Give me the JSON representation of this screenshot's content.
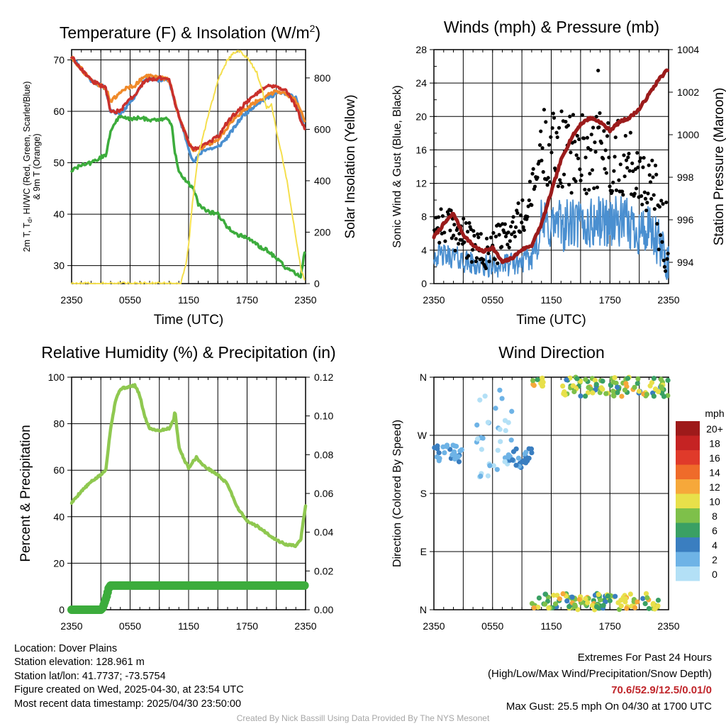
{
  "colors": {
    "red": "#c9302c",
    "green": "#3cac3c",
    "blue": "#4a8fd0",
    "orange": "#f08a2a",
    "yellow": "#f5df4d",
    "maroon": "#9b1b1b",
    "black": "#000000",
    "rh": "#8fc850",
    "precip": "#3cac3c"
  },
  "time_ticks": [
    "2350",
    "0550",
    "1150",
    "1750",
    "2350"
  ],
  "chart_data": [
    {
      "id": "temp",
      "type": "line",
      "title": "Temperature (F) & Insolation (W/m",
      "title_sup": "2",
      "title_close": ")",
      "xlabel": "Time (UTC)",
      "ylabel_lines": [
        "2m T, T",
        "d",
        ", HI/WC (Red, Green, Scarlet/Blue)",
        "& 9m T (Orange)"
      ],
      "y2label": "Solar Insolation (Yellow)",
      "ylim": [
        26.5,
        72
      ],
      "yticks": [
        30,
        40,
        50,
        60,
        70
      ],
      "y2lim": [
        0,
        910
      ],
      "y2ticks": [
        0,
        200,
        400,
        600,
        800
      ],
      "x_hours": [
        0,
        24
      ],
      "series": [
        {
          "color": "blue",
          "width": 3.5,
          "points": [
            [
              0,
              70.6
            ],
            [
              2,
              66
            ],
            [
              3.5,
              64.5
            ],
            [
              4,
              60
            ],
            [
              5,
              59.5
            ],
            [
              6.5,
              63
            ],
            [
              7.5,
              66.3
            ],
            [
              10,
              66
            ],
            [
              11,
              59
            ],
            [
              12,
              53
            ],
            [
              12.5,
              50
            ],
            [
              13.5,
              52.5
            ],
            [
              15,
              53
            ],
            [
              16,
              55
            ],
            [
              17.5,
              59
            ],
            [
              19,
              61.5
            ],
            [
              20,
              62.5
            ],
            [
              21,
              63.5
            ],
            [
              22,
              63.5
            ],
            [
              23,
              62.5
            ],
            [
              24,
              56
            ]
          ]
        },
        {
          "color": "orange",
          "width": 3.5,
          "points": [
            [
              0,
              70.5
            ],
            [
              2,
              66
            ],
            [
              3.5,
              64.5
            ],
            [
              4,
              62
            ],
            [
              5,
              63.5
            ],
            [
              5.5,
              64.5
            ],
            [
              6.5,
              65
            ],
            [
              7.5,
              67
            ],
            [
              10,
              66.2
            ],
            [
              11,
              59
            ],
            [
              12,
              54
            ],
            [
              12.5,
              52.5
            ],
            [
              13.5,
              53
            ],
            [
              15,
              54.5
            ],
            [
              16,
              57
            ],
            [
              17.5,
              60
            ],
            [
              19,
              62
            ],
            [
              20,
              63
            ],
            [
              21,
              64
            ],
            [
              22,
              63.5
            ],
            [
              23,
              62
            ],
            [
              24,
              58
            ]
          ]
        },
        {
          "color": "red",
          "width": 3.5,
          "points": [
            [
              0,
              70.6
            ],
            [
              2,
              66
            ],
            [
              3.5,
              64.5
            ],
            [
              4,
              60
            ],
            [
              5,
              60
            ],
            [
              6,
              62.5
            ],
            [
              6.5,
              63
            ],
            [
              7.5,
              66
            ],
            [
              9,
              66.5
            ],
            [
              10,
              66
            ],
            [
              11,
              59
            ],
            [
              12,
              54
            ],
            [
              12.5,
              52.5
            ],
            [
              13.5,
              53.5
            ],
            [
              15,
              55
            ],
            [
              16,
              58
            ],
            [
              17.5,
              61
            ],
            [
              19,
              63.5
            ],
            [
              20,
              65
            ],
            [
              21,
              65
            ],
            [
              22,
              64
            ],
            [
              23,
              61
            ],
            [
              24,
              56
            ]
          ]
        },
        {
          "color": "green",
          "width": 3.5,
          "points": [
            [
              0,
              48.5
            ],
            [
              1,
              49.5
            ],
            [
              2,
              50
            ],
            [
              3,
              51
            ],
            [
              3.5,
              51.5
            ],
            [
              4,
              56
            ],
            [
              4.5,
              58
            ],
            [
              5,
              59
            ],
            [
              6,
              58.5
            ],
            [
              7,
              58.7
            ],
            [
              8,
              58.4
            ],
            [
              9,
              58.4
            ],
            [
              9.5,
              58.6
            ],
            [
              10,
              58.2
            ],
            [
              10.3,
              57
            ],
            [
              10.6,
              52
            ],
            [
              11,
              48.5
            ],
            [
              11.5,
              47
            ],
            [
              12,
              46
            ],
            [
              12.5,
              45
            ],
            [
              13,
              42
            ],
            [
              14,
              40.5
            ],
            [
              15,
              40
            ],
            [
              16,
              37.5
            ],
            [
              17,
              36
            ],
            [
              18,
              35.5
            ],
            [
              19,
              34
            ],
            [
              20,
              33
            ],
            [
              21,
              31.5
            ],
            [
              22,
              29.5
            ],
            [
              23,
              28.5
            ],
            [
              23.5,
              27.8
            ],
            [
              24,
              34
            ]
          ]
        },
        {
          "color": "yellow",
          "width": 2,
          "axis": "y2",
          "points": [
            [
              0,
              0
            ],
            [
              11.2,
              0
            ],
            [
              11.7,
              70
            ],
            [
              12,
              150
            ],
            [
              12.5,
              350
            ],
            [
              13,
              500
            ],
            [
              14,
              650
            ],
            [
              15,
              790
            ],
            [
              16,
              870
            ],
            [
              17,
              910
            ],
            [
              18,
              880
            ],
            [
              19,
              820
            ],
            [
              19.5,
              760
            ],
            [
              20,
              680
            ],
            [
              20.5,
              700
            ],
            [
              21,
              600
            ],
            [
              22,
              420
            ],
            [
              23,
              180
            ],
            [
              23.5,
              60
            ],
            [
              24,
              0
            ]
          ]
        }
      ]
    },
    {
      "id": "wind",
      "type": "scatter",
      "title": "Winds (mph) & Pressure (mb)",
      "xlabel": "Time (UTC)",
      "ylabel": "Sonic Wind & Gust (Blue, Black)",
      "y2label": "Station Pressure (Maroon)",
      "ylim": [
        0,
        28
      ],
      "yticks": [
        0,
        4,
        8,
        12,
        16,
        20,
        24,
        28
      ],
      "y2lim": [
        993.0,
        1004.0
      ],
      "y2ticks": [
        994,
        996,
        998,
        1000,
        1002,
        1004
      ],
      "x_hours": [
        0,
        24
      ],
      "wind_color": "blue",
      "gust_color": "black",
      "pressure_color": "maroon",
      "wind_mean": [
        [
          0,
          3.5
        ],
        [
          2,
          3.2
        ],
        [
          4,
          2.3
        ],
        [
          5,
          2.0
        ],
        [
          6,
          2.1
        ],
        [
          8,
          2.3
        ],
        [
          10,
          3.0
        ],
        [
          10.5,
          5.5
        ],
        [
          11,
          7.0
        ],
        [
          12,
          7.0
        ],
        [
          14,
          7.0
        ],
        [
          16,
          7.0
        ],
        [
          17,
          7.5
        ],
        [
          19,
          7.3
        ],
        [
          21,
          6.5
        ],
        [
          22,
          6.0
        ],
        [
          23,
          4.5
        ],
        [
          24,
          2.5
        ]
      ],
      "gust_mean": [
        [
          0,
          7.5
        ],
        [
          2,
          6.5
        ],
        [
          4,
          4.5
        ],
        [
          5,
          3.5
        ],
        [
          6,
          4.2
        ],
        [
          8,
          6.5
        ],
        [
          9.5,
          8.5
        ],
        [
          10.5,
          13
        ],
        [
          11,
          16.5
        ],
        [
          12,
          16.5
        ],
        [
          14,
          15.5
        ],
        [
          16,
          15.5
        ],
        [
          17,
          16
        ],
        [
          19,
          15
        ],
        [
          21,
          13.5
        ],
        [
          22,
          12
        ],
        [
          23,
          8
        ],
        [
          24,
          4.5
        ]
      ],
      "pressure": [
        [
          0,
          995.2
        ],
        [
          1,
          995.8
        ],
        [
          2,
          996.3
        ],
        [
          3,
          995.3
        ],
        [
          4,
          994.8
        ],
        [
          5,
          994.5
        ],
        [
          6,
          994.7
        ],
        [
          7,
          994.0
        ],
        [
          8,
          994.2
        ],
        [
          9,
          994.6
        ],
        [
          10,
          994.8
        ],
        [
          11,
          995.8
        ],
        [
          12,
          997.3
        ],
        [
          13,
          998.8
        ],
        [
          14,
          999.8
        ],
        [
          15,
          1000.5
        ],
        [
          16,
          1000.8
        ],
        [
          17,
          1000.6
        ],
        [
          18,
          1000.2
        ],
        [
          19,
          1000.6
        ],
        [
          20,
          1000.8
        ],
        [
          21,
          1001.2
        ],
        [
          22,
          1001.9
        ],
        [
          23,
          1002.6
        ],
        [
          24,
          1003.1
        ]
      ],
      "max_gust": [
        [
          16.8,
          25.5
        ]
      ]
    },
    {
      "id": "rh",
      "type": "line",
      "title": "Relative Humidity (%) & Precipitation (in)",
      "ylabel": "Percent & Precipitation",
      "ylim": [
        0,
        100
      ],
      "yticks": [
        0,
        20,
        40,
        60,
        80,
        100
      ],
      "y2lim": [
        0,
        0.12
      ],
      "y2ticks": [
        "0.00",
        "0.02",
        "0.04",
        "0.06",
        "0.08",
        "0.10",
        "0.12"
      ],
      "x_hours": [
        0,
        24
      ],
      "rh_color": "rh",
      "rh": [
        [
          0,
          46
        ],
        [
          1,
          51
        ],
        [
          2,
          55
        ],
        [
          3,
          58
        ],
        [
          3.5,
          60
        ],
        [
          4,
          78
        ],
        [
          4.5,
          90
        ],
        [
          5,
          95
        ],
        [
          6,
          96
        ],
        [
          6.5,
          96.5
        ],
        [
          7,
          92
        ],
        [
          7.5,
          83
        ],
        [
          8,
          78
        ],
        [
          9,
          77
        ],
        [
          10,
          78
        ],
        [
          10.5,
          82
        ],
        [
          10.6,
          86
        ],
        [
          11,
          70
        ],
        [
          11.5,
          65
        ],
        [
          12,
          61
        ],
        [
          12.5,
          64
        ],
        [
          12.8,
          65.5
        ],
        [
          13.5,
          62
        ],
        [
          15,
          58
        ],
        [
          16,
          54
        ],
        [
          17,
          44
        ],
        [
          18,
          38
        ],
        [
          19,
          36
        ],
        [
          20,
          33
        ],
        [
          21,
          30
        ],
        [
          22,
          28
        ],
        [
          23,
          27.5
        ],
        [
          23.5,
          30
        ],
        [
          24,
          45
        ]
      ],
      "precip_color": "precip",
      "precip": [
        [
          0,
          0
        ],
        [
          3,
          0
        ],
        [
          3.2,
          0.001
        ],
        [
          3.4,
          0.004
        ],
        [
          3.6,
          0.007
        ],
        [
          3.8,
          0.011
        ],
        [
          4,
          0.0125
        ],
        [
          24,
          0.0125
        ]
      ]
    },
    {
      "id": "dir",
      "type": "scatter",
      "title": "Wind Direction",
      "ylabel": "Direction (Colored By Speed)",
      "yticklabels": [
        "N",
        "E",
        "S",
        "W",
        "N"
      ],
      "ylim": [
        0,
        360
      ],
      "x_hours": [
        0,
        24
      ],
      "legend_unit": "mph",
      "legend_labels": [
        "20+",
        "18",
        "16",
        "14",
        "12",
        "10",
        "8",
        "6",
        "4",
        "2",
        "0"
      ],
      "legend_colors": [
        "#9e1a1a",
        "#c52323",
        "#e03a2a",
        "#ef6b2a",
        "#f6a83a",
        "#e8e04a",
        "#7ec04a",
        "#3aa064",
        "#3a7ec0",
        "#6eb3e6",
        "#b3e0f6"
      ],
      "clusters": [
        {
          "x": [
            0,
            3
          ],
          "dir": [
            225,
            255
          ],
          "spd": [
            2,
            4
          ]
        },
        {
          "x": [
            4,
            8
          ],
          "dir": [
            200,
            340
          ],
          "spd": [
            0,
            2
          ]
        },
        {
          "x": [
            7,
            10
          ],
          "dir": [
            220,
            250
          ],
          "spd": [
            2,
            5
          ]
        },
        {
          "x": [
            10,
            11.2
          ],
          "dir": [
            345,
            360
          ],
          "spd": [
            6,
            12
          ]
        },
        {
          "x": [
            13,
            24
          ],
          "dir": [
            330,
            360
          ],
          "spd": [
            4,
            12
          ]
        },
        {
          "x": [
            10,
            23
          ],
          "dir": [
            0,
            25
          ],
          "spd": [
            4,
            12
          ]
        }
      ]
    }
  ],
  "info": {
    "location": "Location: Dover Plains",
    "elevation": "Station elevation: 128.961 m",
    "latlon": "Station lat/lon: 41.7737; -73.5754",
    "created": "Figure created on Wed, 2025-04-30, at 23:54 UTC",
    "recent": "Most recent data timestamp: 2025/04/30 23:50:00"
  },
  "extremes": {
    "title": "Extremes For Past 24 Hours",
    "subtitle": "(High/Low/Max Wind/Precipitation/Snow Depth)",
    "values": "70.6/52.9/12.5/0.01/0",
    "max_gust": "Max Gust: 25.5 mph On 04/30 at 1700 UTC"
  },
  "credit": "Created By Nick Bassill Using Data Provided By The NYS Mesonet"
}
